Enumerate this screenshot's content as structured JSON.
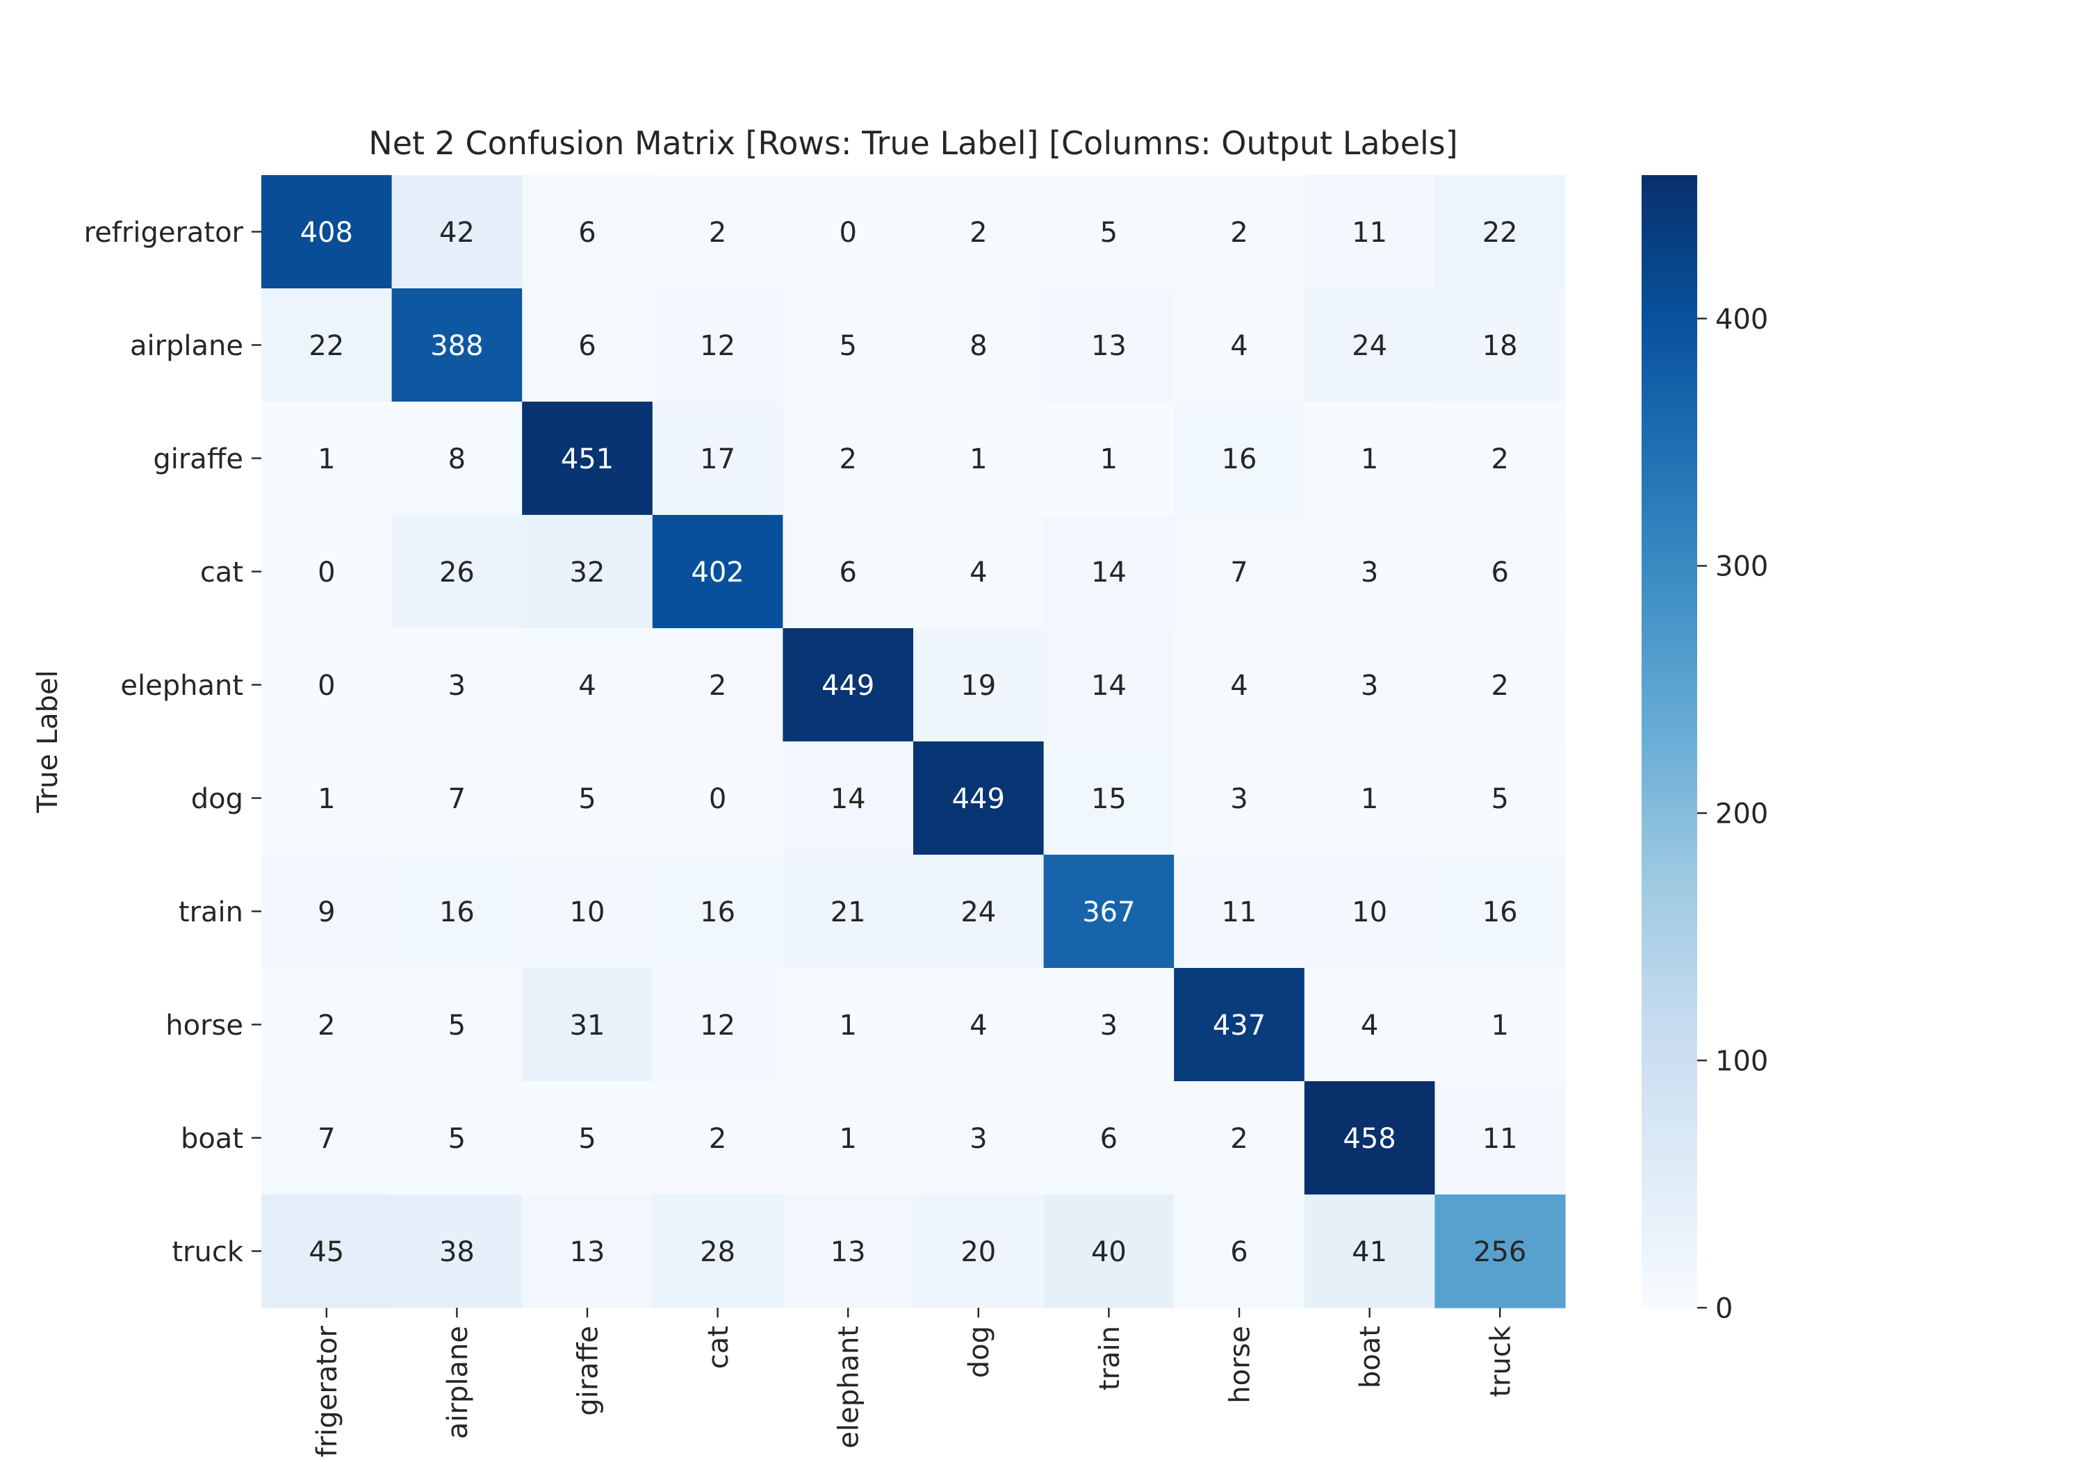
{
  "chart_data": {
    "type": "heatmap",
    "title": "Net 2 Confusion Matrix [Rows: True Label] [Columns: Output Labels]",
    "ylabel": "True Label",
    "xlabel": "",
    "row_labels": [
      "refrigerator",
      "airplane",
      "giraffe",
      "cat",
      "elephant",
      "dog",
      "train",
      "horse",
      "boat",
      "truck"
    ],
    "col_labels": [
      "frigerator",
      "airplane",
      "giraffe",
      "cat",
      "elephant",
      "dog",
      "train",
      "horse",
      "boat",
      "truck"
    ],
    "values": [
      [
        408,
        42,
        6,
        2,
        0,
        2,
        5,
        2,
        11,
        22
      ],
      [
        22,
        388,
        6,
        12,
        5,
        8,
        13,
        4,
        24,
        18
      ],
      [
        1,
        8,
        451,
        17,
        2,
        1,
        1,
        16,
        1,
        2
      ],
      [
        0,
        26,
        32,
        402,
        6,
        4,
        14,
        7,
        3,
        6
      ],
      [
        0,
        3,
        4,
        2,
        449,
        19,
        14,
        4,
        3,
        2
      ],
      [
        1,
        7,
        5,
        0,
        14,
        449,
        15,
        3,
        1,
        5
      ],
      [
        9,
        16,
        10,
        16,
        21,
        24,
        367,
        11,
        10,
        16
      ],
      [
        2,
        5,
        31,
        12,
        1,
        4,
        3,
        437,
        4,
        1
      ],
      [
        7,
        5,
        5,
        2,
        1,
        3,
        6,
        2,
        458,
        11
      ],
      [
        45,
        38,
        13,
        28,
        13,
        20,
        40,
        6,
        41,
        256
      ]
    ],
    "colormap": "Blues",
    "vmin": 0,
    "vmax": 458,
    "colorbar_ticks": [
      0,
      100,
      200,
      300,
      400
    ],
    "colorbar_tick_labels": [
      "0",
      "100",
      "200",
      "300",
      "400"
    ],
    "grid": false,
    "colors": {
      "low": "#f7fbff",
      "high": "#08306b",
      "text_dark": "#262626",
      "text_light": "#ffffff"
    }
  }
}
